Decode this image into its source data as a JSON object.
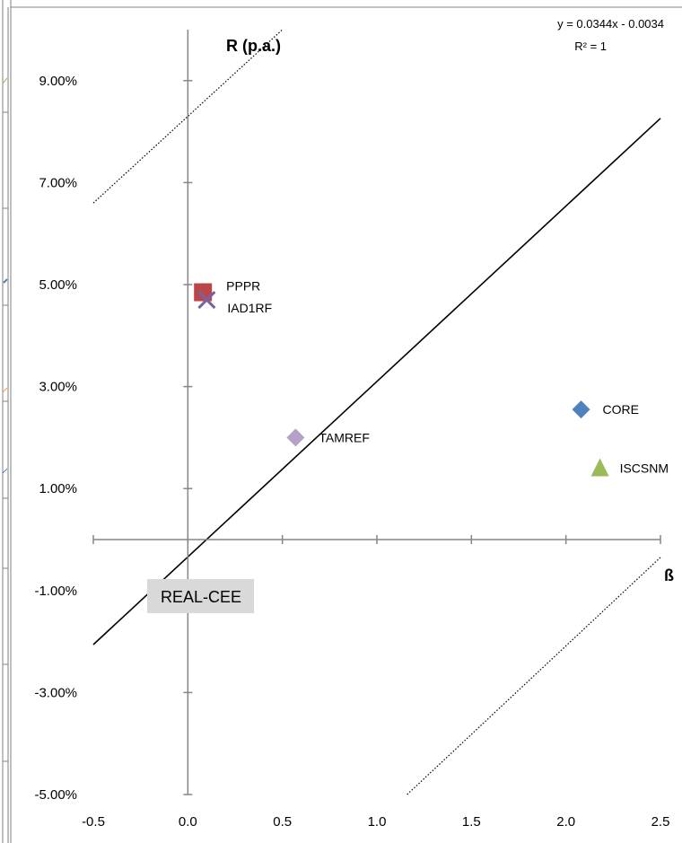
{
  "chart_data": {
    "type": "scatter",
    "title": "",
    "xlabel": "ß",
    "ylabel": "R (p.a.)",
    "xlim": [
      -0.5,
      2.5
    ],
    "ylim": [
      -5.0,
      10.0
    ],
    "x_ticks": [
      "-0.5",
      "0.0",
      "0.5",
      "1.0",
      "1.5",
      "2.0",
      "2.5"
    ],
    "y_ticks": [
      "9.00%",
      "7.00%",
      "5.00%",
      "3.00%",
      "1.00%",
      "-1.00%",
      "-3.00%",
      "-5.00%"
    ],
    "grid": false,
    "series": [
      {
        "name": "PPPR",
        "marker": "square",
        "color": "#B7474A",
        "points": [
          {
            "x": 0.08,
            "y": 4.85
          }
        ]
      },
      {
        "name": "IAD1RF",
        "marker": "x",
        "color": "#7D60A0",
        "points": [
          {
            "x": 0.1,
            "y": 4.7
          }
        ]
      },
      {
        "name": "TAMREF",
        "marker": "diamond",
        "color": "#B3A2C7",
        "points": [
          {
            "x": 0.57,
            "y": 2.0
          }
        ]
      },
      {
        "name": "CORE",
        "marker": "diamond",
        "color": "#4F81BD",
        "points": [
          {
            "x": 2.08,
            "y": 2.55
          }
        ]
      },
      {
        "name": "ISCSNM",
        "marker": "triangle",
        "color": "#9BBB59",
        "points": [
          {
            "x": 2.18,
            "y": 1.4
          }
        ]
      }
    ],
    "trendline": {
      "equation": "y = 0.0344x - 0.0034",
      "r_squared": "R² = 1",
      "slope": 3.44,
      "intercept": -0.34,
      "x_range": [
        -0.5,
        2.5
      ]
    },
    "band_lines": [
      {
        "style": "dotted",
        "points": [
          [
            -0.5,
            6.6
          ],
          [
            0.5,
            10.0
          ]
        ]
      },
      {
        "style": "dotted",
        "points": [
          [
            1.16,
            -5.0
          ],
          [
            2.5,
            -0.35
          ]
        ]
      }
    ],
    "annotation": "REAL-CEE"
  }
}
